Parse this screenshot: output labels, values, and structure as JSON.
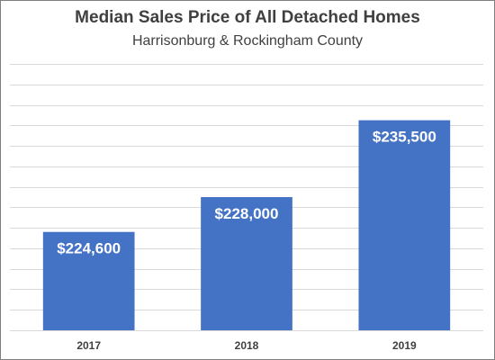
{
  "chart_data": {
    "type": "bar",
    "title": "Median Sales Price of All Detached Homes",
    "subtitle": "Harrisonburg & Rockingham County",
    "xlabel": "",
    "ylabel": "",
    "categories": [
      "2017",
      "2018",
      "2019"
    ],
    "values": [
      224600,
      228000,
      235500
    ],
    "data_labels": [
      "$224,600",
      "$228,000",
      "$235,500"
    ],
    "ylim": [
      215000,
      241000
    ],
    "ytick_step": 2000,
    "yaxis_labels_shown": false,
    "grid": true,
    "legend": "none",
    "bar_color": "#4472C4",
    "grid_color": "#D9D9D9",
    "label_color": "#FFFFFF",
    "axis_text_color": "#404040"
  }
}
